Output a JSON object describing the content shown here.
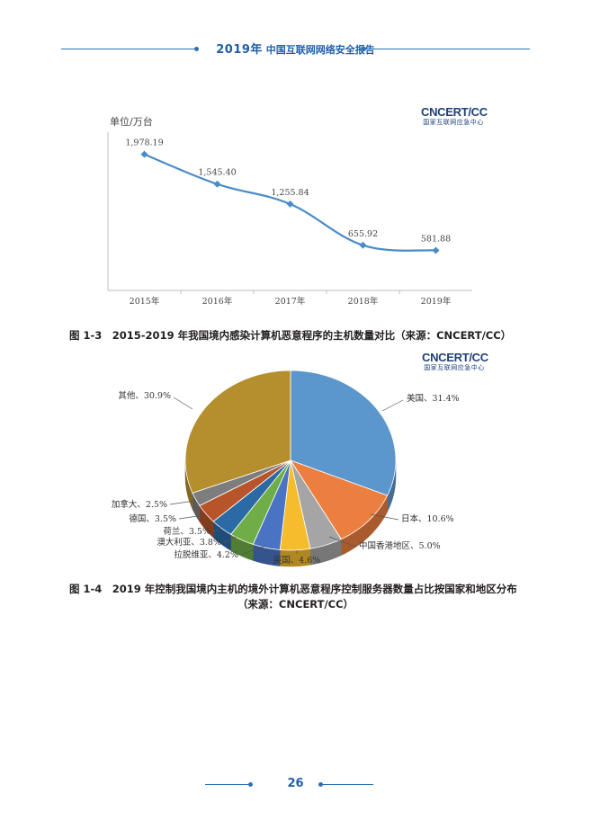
{
  "header": {
    "year": "2019年",
    "title": "中国互联网网络安全报告"
  },
  "logo": {
    "name": "CNCERT/CC",
    "sub": "国家互联网应急中心"
  },
  "figure1": {
    "unit_label": "单位/万台",
    "caption": "图 1-3　2015-2019 年我国境内感染计算机恶意程序的主机数量对比（来源：CNCERT/CC）"
  },
  "figure2": {
    "caption_line1": "图 1-4　2019 年控制我国境内主机的境外计算机恶意程序控制服务器数量占比按国家和地区分布",
    "caption_line2": "（来源：CNCERT/CC）"
  },
  "page_number": "26",
  "chart_data": [
    {
      "type": "line",
      "x": [
        "2015年",
        "2016年",
        "2017年",
        "2018年",
        "2019年"
      ],
      "y": [
        1978.19,
        1545.4,
        1255.84,
        655.92,
        581.88
      ],
      "data_labels": [
        "1,978.19",
        "1,545.40",
        "1,255.84",
        "655.92",
        "581.88"
      ],
      "ylabel": "单位/万台",
      "ylim": [
        0,
        2300
      ],
      "color": "#4a8cc7",
      "grid": false
    },
    {
      "type": "pie",
      "slices": [
        {
          "label": "美国",
          "value": 31.4,
          "text": "美国、31.4%",
          "color": "#5b97cd"
        },
        {
          "label": "日本",
          "value": 10.6,
          "text": "日本、10.6%",
          "color": "#ec7f3f"
        },
        {
          "label": "中国香港地区",
          "value": 5.0,
          "text": "中国香港地区、5.0%",
          "color": "#a5a5a5"
        },
        {
          "label": "英国",
          "value": 4.6,
          "text": "英国、4.6%",
          "color": "#f5bd2e"
        },
        {
          "label": "拉脱维亚",
          "value": 4.2,
          "text": "拉脱维亚、4.2%",
          "color": "#4a73c4"
        },
        {
          "label": "澳大利亚",
          "value": 3.8,
          "text": "澳大利亚、3.8%",
          "color": "#6fae47"
        },
        {
          "label": "荷兰",
          "value": 3.5,
          "text": "荷兰、3.5%",
          "color": "#2c6aa6"
        },
        {
          "label": "德国",
          "value": 3.5,
          "text": "德国、3.5%",
          "color": "#b7542a"
        },
        {
          "label": "加拿大",
          "value": 2.5,
          "text": "加拿大、2.5%",
          "color": "#7d7d7d"
        },
        {
          "label": "其他",
          "value": 30.9,
          "text": "其他、30.9%",
          "color": "#b58f2e"
        }
      ]
    }
  ]
}
